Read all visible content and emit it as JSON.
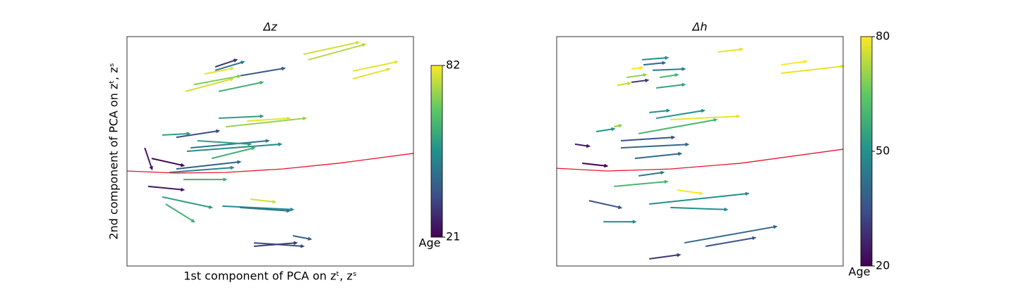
{
  "chart_data": [
    {
      "type": "quiver",
      "title": "Δz",
      "xlabel": "1st component of PCA on zᵗ, zˢ",
      "ylabel": "2nd component of PCA on zᵗ, zˢ",
      "colormap": "viridis",
      "colorbar": {
        "label": "Age",
        "lim": [
          21,
          82
        ],
        "ticks": [
          21,
          82
        ]
      },
      "x": [
        0.633,
        0.616,
        0.788,
        0.788,
        0.204,
        0.308,
        0.32,
        0.389,
        0.234,
        0.271,
        0.308,
        0.32,
        0.345,
        0.172,
        0.209,
        0.222,
        0.296,
        0.172,
        0.148,
        0.123,
        0.062,
        0.074,
        0.123,
        0.135,
        0.333,
        0.394,
        0.443,
        0.443,
        0.579,
        0.431,
        0.197,
        0.086,
        0.246,
        0.419
      ],
      "y": [
        0.899,
        0.923,
        0.85,
        0.816,
        0.761,
        0.853,
        0.761,
        0.828,
        0.791,
        0.837,
        0.868,
        0.644,
        0.607,
        0.561,
        0.5,
        0.515,
        0.469,
        0.423,
        0.408,
        0.571,
        0.515,
        0.347,
        0.301,
        0.27,
        0.261,
        0.255,
        0.101,
        0.086,
        0.132,
        0.291,
        0.377,
        0.469,
        0.546,
        0.632
      ],
      "u": [
        0.197,
        0.192,
        0.155,
        0.128,
        0.165,
        0.099,
        0.153,
        0.16,
        0.16,
        0.099,
        0.074,
        0.153,
        0.278,
        0.148,
        0.328,
        0.271,
        0.148,
        0.222,
        0.222,
        0.094,
        0.025,
        0.123,
        0.172,
        0.099,
        0.246,
        0.172,
        0.172,
        0.148,
        0.062,
        0.086,
        0.148,
        0.111,
        0.185,
        0.148
      ],
      "v": [
        0.067,
        0.052,
        0.04,
        0.043,
        0.055,
        0.037,
        0.04,
        0.034,
        0.037,
        0.025,
        0.031,
        0.009,
        0.037,
        0.028,
        0.031,
        0.031,
        0.046,
        0.031,
        0.021,
        0.006,
        -0.092,
        -0.015,
        -0.046,
        -0.077,
        -0.015,
        -0.015,
        -0.015,
        0.015,
        -0.015,
        -0.012,
        0,
        -0.031,
        -0.015,
        0.012
      ],
      "age": [
        75,
        78,
        80,
        80,
        78,
        45,
        60,
        38,
        70,
        80,
        30,
        55,
        72,
        35,
        50,
        45,
        60,
        40,
        50,
        55,
        25,
        25,
        55,
        60,
        50,
        45,
        35,
        32,
        40,
        78,
        60,
        22,
        55,
        80
      ],
      "curve": {
        "color": "#e8132d",
        "x": [
          0,
          0.172,
          0.345,
          0.542,
          0.739,
          1
        ],
        "y": [
          0.414,
          0.405,
          0.408,
          0.423,
          0.448,
          0.491
        ]
      }
    },
    {
      "type": "quiver",
      "title": "Δh",
      "colormap": "viridis",
      "colorbar": {
        "label": "Age",
        "lim": [
          20,
          80
        ],
        "ticks": [
          20,
          50,
          80
        ]
      },
      "x": [
        0.564,
        0.783,
        0.783,
        0.298,
        0.303,
        0.335,
        0.261,
        0.244,
        0.36,
        0.347,
        0.212,
        0.261,
        0.323,
        0.347,
        0.286,
        0.397,
        0.224,
        0.224,
        0.273,
        0.138,
        0.064,
        0.089,
        0.113,
        0.163,
        0.323,
        0.397,
        0.421,
        0.446,
        0.52,
        0.323,
        0.2,
        0.286,
        0.2
      ],
      "y": [
        0.933,
        0.877,
        0.84,
        0.899,
        0.877,
        0.853,
        0.859,
        0.822,
        0.822,
        0.776,
        0.788,
        0.801,
        0.669,
        0.644,
        0.577,
        0.638,
        0.546,
        0.515,
        0.469,
        0.586,
        0.531,
        0.448,
        0.285,
        0.193,
        0.27,
        0.255,
        0.331,
        0.101,
        0.086,
        0.031,
        0.347,
        0.393,
        0.607
      ],
      "u": [
        0.084,
        0.089,
        0.217,
        0.089,
        0.074,
        0.111,
        0.037,
        0.067,
        0.062,
        0.099,
        0.044,
        0.057,
        0.069,
        0.167,
        0.271,
        0.239,
        0.185,
        0.234,
        0.16,
        0.062,
        0.049,
        0.086,
        0.111,
        0.111,
        0.345,
        0.197,
        0.086,
        0.32,
        0.172,
        0.106,
        0.185,
        0.086,
        0.025
      ],
      "v": [
        0.012,
        0.015,
        0.031,
        0.009,
        0.009,
        0.006,
        0.006,
        0.012,
        0.012,
        0.015,
        0.009,
        0.009,
        0.009,
        0.034,
        0.061,
        0.015,
        0.015,
        0.015,
        0.021,
        0.012,
        -0.009,
        -0.012,
        -0.031,
        0,
        0.046,
        -0.009,
        -0.015,
        0.071,
        0.037,
        0.018,
        0.021,
        0.015,
        0.006
      ],
      "age": [
        78,
        80,
        78,
        50,
        40,
        45,
        80,
        70,
        60,
        55,
        75,
        30,
        50,
        50,
        60,
        78,
        35,
        40,
        40,
        50,
        25,
        20,
        35,
        50,
        50,
        50,
        80,
        40,
        35,
        30,
        60,
        45,
        70
      ],
      "curve": {
        "color": "#e8132d",
        "x": [
          0,
          0.175,
          0.397,
          0.643,
          1
        ],
        "y": [
          0.426,
          0.414,
          0.423,
          0.448,
          0.509
        ]
      }
    }
  ]
}
